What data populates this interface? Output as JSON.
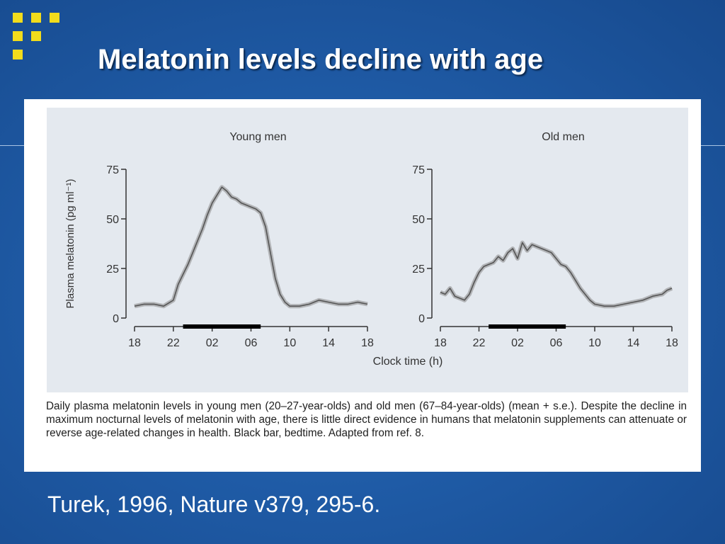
{
  "slide": {
    "title": "Melatonin levels decline with age",
    "citation": "Turek, 1996, Nature v379, 295-6.",
    "caption": "Daily plasma melatonin levels in young men (20–27-year-olds) and old men (67–84-year-olds) (mean + s.e.). Despite the decline in maximum nocturnal levels of melatonin with age, there is little direct evidence in humans that melatonin supplements can attenuate or reverse age-related changes in health. Black bar, bedtime. Adapted from ref. 8.",
    "colors": {
      "background": "#1f5ba6",
      "accent": "#f2dc1c",
      "plot_bg": "#e4e9ef",
      "line": "#555555"
    }
  },
  "chart_data": {
    "type": "line",
    "ylabel": "Plasma melatonin (pg ml⁻¹)",
    "xlabel": "Clock time (h)",
    "yticks": [
      0,
      25,
      50,
      75
    ],
    "ylim": [
      0,
      75
    ],
    "xlim": [
      18,
      42
    ],
    "xticks": [
      18,
      22,
      26,
      30,
      34,
      38,
      42
    ],
    "xtick_labels": [
      "18",
      "22",
      "02",
      "06",
      "10",
      "14",
      "18"
    ],
    "bedtime_bar": [
      23,
      31
    ],
    "panels": [
      {
        "title": "Young men",
        "x": [
          18,
          19,
          20,
          21,
          22,
          22.5,
          23,
          23.5,
          24,
          24.5,
          25,
          25.5,
          26,
          26.5,
          27,
          27.5,
          28,
          28.5,
          29,
          29.5,
          30,
          30.5,
          31,
          31.5,
          32,
          32.5,
          33,
          33.5,
          34,
          35,
          36,
          37,
          38,
          39,
          40,
          41,
          42
        ],
        "y": [
          6,
          7,
          7,
          6,
          9,
          17,
          22,
          27,
          33,
          39,
          45,
          52,
          58,
          62,
          66,
          64,
          61,
          60,
          58,
          57,
          56,
          55,
          53,
          46,
          33,
          20,
          12,
          8,
          6,
          6,
          7,
          9,
          8,
          7,
          7,
          8,
          7
        ]
      },
      {
        "title": "Old men",
        "x": [
          18,
          18.5,
          19,
          19.5,
          20,
          20.5,
          21,
          21.5,
          22,
          22.5,
          23,
          23.5,
          24,
          24.5,
          25,
          25.5,
          26,
          26.5,
          27,
          27.5,
          28,
          28.5,
          29,
          29.5,
          30,
          30.5,
          31,
          31.5,
          32,
          32.5,
          33,
          33.5,
          34,
          35,
          36,
          37,
          38,
          39,
          40,
          41,
          41.5,
          42
        ],
        "y": [
          13,
          12,
          15,
          11,
          10,
          9,
          12,
          18,
          23,
          26,
          27,
          28,
          31,
          29,
          33,
          35,
          30,
          38,
          34,
          37,
          36,
          35,
          34,
          33,
          30,
          27,
          26,
          23,
          19,
          15,
          12,
          9,
          7,
          6,
          6,
          7,
          8,
          9,
          11,
          12,
          14,
          15
        ]
      }
    ]
  }
}
